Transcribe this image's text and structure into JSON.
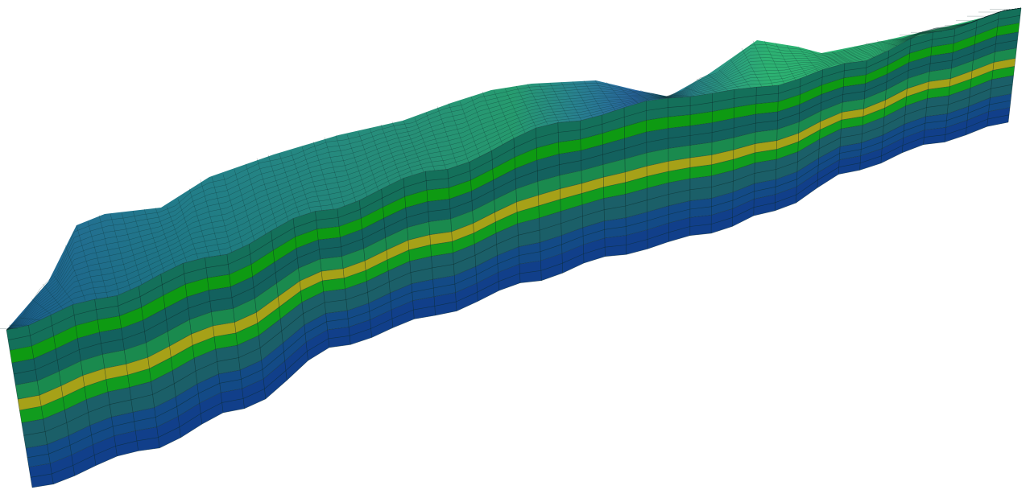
{
  "scene": {
    "subject": "layered-geological-mesh-block",
    "background_color": "#ffffff",
    "mesh_line_color": "#0b2a2a",
    "layer_colors": [
      "#14705a",
      "#0e9a12",
      "#13615e",
      "#1a8a4e",
      "#a6a118",
      "#119c1e",
      "#1b5f68",
      "#134a86",
      "#113f8a"
    ],
    "top_surface_colors": {
      "front_slope": "#1c8d6d",
      "ridge_green": "#1fb36a",
      "ridge_teal": "#1a7f8f",
      "ridge_blue": "#1c5f9e"
    }
  }
}
